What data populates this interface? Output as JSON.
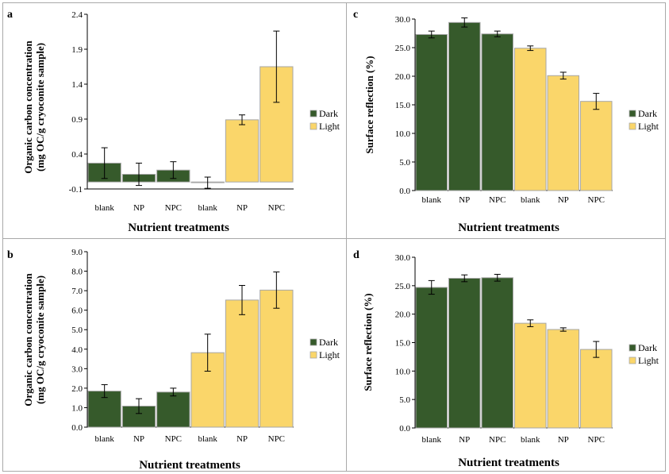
{
  "colors": {
    "dark": "#365a2b",
    "light": "#fad66a",
    "bar_stroke": "#a7a7a7",
    "frame": "#a9a9a9",
    "error": "#000000"
  },
  "chart_data": [
    {
      "panel": "a",
      "type": "bar",
      "categories": [
        "blank",
        "NP",
        "NPC",
        "blank",
        "NP",
        "NPC"
      ],
      "groups": [
        "Dark",
        "Dark",
        "Dark",
        "Light",
        "Light",
        "Light"
      ],
      "values": [
        0.27,
        0.11,
        0.17,
        -0.01,
        0.89,
        1.65
      ],
      "errors": [
        0.22,
        0.16,
        0.12,
        0.08,
        0.07,
        0.51
      ],
      "ylabel": "Organic carbon concentration (mg OC/g cryoconite sample)",
      "ylabel_lines": [
        "Organic carbon concentration",
        "(mg OC/g cryoconite sample)"
      ],
      "xlabel": "Nutrient treatments",
      "ylim": [
        -0.1,
        2.4
      ],
      "yticks": [
        -0.1,
        0.4,
        0.9,
        1.4,
        1.9,
        2.4
      ],
      "ytick_labels": [
        "-0.1",
        "0.4",
        "0.9",
        "1.4",
        "1.9",
        "2.4"
      ],
      "legend": [
        "Dark",
        "Light"
      ],
      "legend_position": "right",
      "grid": false
    },
    {
      "panel": "c",
      "type": "bar",
      "categories": [
        "blank",
        "NP",
        "NPC",
        "blank",
        "NP",
        "NPC"
      ],
      "groups": [
        "Dark",
        "Dark",
        "Dark",
        "Light",
        "Light",
        "Light"
      ],
      "values": [
        27.3,
        29.4,
        27.4,
        24.9,
        20.1,
        15.6
      ],
      "errors": [
        0.6,
        0.8,
        0.5,
        0.4,
        0.6,
        1.4
      ],
      "ylabel": "Surface reflection (%)",
      "xlabel": "Nutrient treatments",
      "ylim": [
        0,
        30
      ],
      "yticks": [
        0,
        5,
        10,
        15,
        20,
        25,
        30
      ],
      "ytick_labels": [
        "0.0",
        "5.0",
        "10.0",
        "15.0",
        "20.0",
        "25.0",
        "30.0"
      ],
      "legend": [
        "Dark",
        "Light"
      ],
      "legend_position": "right",
      "grid": false
    },
    {
      "panel": "b",
      "type": "bar",
      "categories": [
        "blank",
        "NP",
        "NPC",
        "blank",
        "NP",
        "NPC"
      ],
      "groups": [
        "Dark",
        "Dark",
        "Dark",
        "Light",
        "Light",
        "Light"
      ],
      "values": [
        1.85,
        1.08,
        1.8,
        3.82,
        6.52,
        7.03
      ],
      "errors": [
        0.33,
        0.38,
        0.2,
        0.95,
        0.75,
        0.93
      ],
      "ylabel": "Organic carbon concentration (mg OC/g cryoconite sample)",
      "ylabel_lines": [
        "Organic carbon concentration",
        "(mg OC/g cryoconite sample)"
      ],
      "xlabel": "Nutrient treatments",
      "ylim": [
        0,
        9
      ],
      "yticks": [
        0,
        1,
        2,
        3,
        4,
        5,
        6,
        7,
        8,
        9
      ],
      "ytick_labels": [
        "0.0",
        "1.0",
        "2.0",
        "3.0",
        "4.0",
        "5.0",
        "6.0",
        "7.0",
        "8.0",
        "9.0"
      ],
      "legend": [
        "Dark",
        "Light"
      ],
      "legend_position": "right",
      "grid": false
    },
    {
      "panel": "d",
      "type": "bar",
      "categories": [
        "blank",
        "NP",
        "NPC",
        "blank",
        "NP",
        "NPC"
      ],
      "groups": [
        "Dark",
        "Dark",
        "Dark",
        "Light",
        "Light",
        "Light"
      ],
      "values": [
        24.7,
        26.3,
        26.4,
        18.4,
        17.3,
        13.8
      ],
      "errors": [
        1.2,
        0.6,
        0.6,
        0.6,
        0.3,
        1.4
      ],
      "ylabel": "Surface reflection (%)",
      "xlabel": "Nutrient treatments",
      "ylim": [
        0,
        30
      ],
      "yticks": [
        0,
        5,
        10,
        15,
        20,
        25,
        30
      ],
      "ytick_labels": [
        "0.0",
        "5.0",
        "10.0",
        "15.0",
        "20.0",
        "25.0",
        "30.0"
      ],
      "legend": [
        "Dark",
        "Light"
      ],
      "legend_position": "right",
      "grid": false
    }
  ]
}
